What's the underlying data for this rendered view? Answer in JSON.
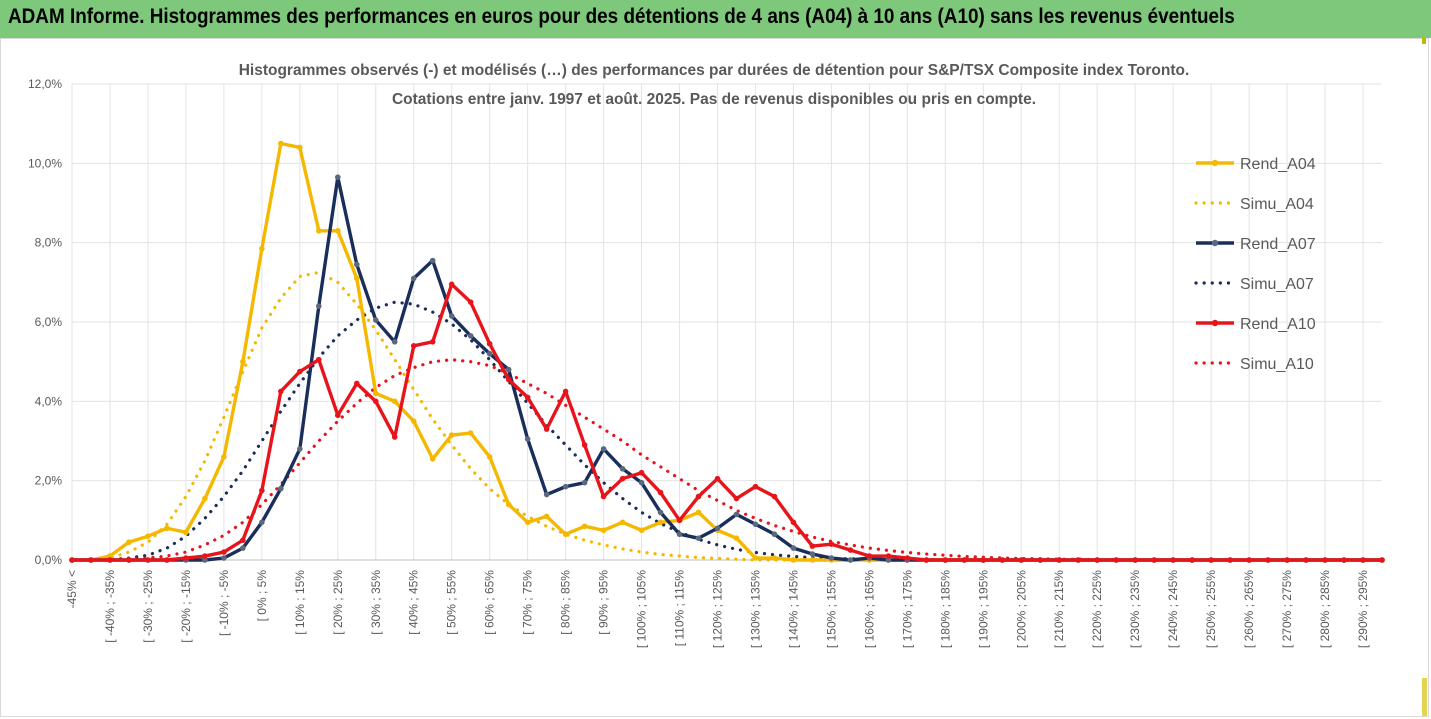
{
  "banner": {
    "title": "ADAM Informe. Histogrammes des performances en euros pour des détentions de 4 ans (A04) à 10 ans (A10) sans les revenus éventuels"
  },
  "chart_data": {
    "type": "line",
    "title_line1": "Histogrammes observés (-) et modélisés (…) des performances par durées de détention pour S&P/TSX Composite index Toronto.",
    "title_line2": "Cotations entre janv. 1997 et août. 2025. Pas de revenus disponibles ou pris en compte.",
    "ylim": [
      0,
      12
    ],
    "y_ticks": [
      "0,0%",
      "2,0%",
      "4,0%",
      "6,0%",
      "8,0%",
      "10,0%",
      "12,0%"
    ],
    "x_labels": [
      "-45% <",
      "[ -40% ; -35%",
      "[ -30% ; -25%",
      "[ -20% ; -15%",
      "[ -10% ; -5%",
      "[ 0% ; 5%",
      "[ 10% ; 15%",
      "[ 20% ; 25%",
      "[ 30% ; 35%",
      "[ 40% ; 45%",
      "[ 50% ; 55%",
      "[ 60% ; 65%",
      "[ 70% ; 75%",
      "[ 80% ; 85%",
      "[ 90% ; 95%",
      "[ 100% ; 105%",
      "[ 110% ; 115%",
      "[ 120% ; 125%",
      "[ 130% ; 135%",
      "[ 140% ; 145%",
      "[ 150% ; 155%",
      "[ 160% ; 165%",
      "[ 170% ; 175%",
      "[ 180% ; 185%",
      "[ 190% ; 195%",
      "[ 200% ; 205%",
      "[ 210% ; 215%",
      "[ 220% ; 225%",
      "[ 230% ; 235%",
      "[ 240% ; 245%",
      "[ 250% ; 255%",
      "[ 260% ; 265%",
      "[ 270% ; 275%",
      "[ 280% ; 285%",
      "[ 290% ; 295%"
    ],
    "grid": true,
    "legend_position": "right",
    "series": [
      {
        "name": "Rend_A04",
        "style": "solid",
        "color": "#f5b800",
        "values": [
          0,
          0,
          0.1,
          0.45,
          0.6,
          0.8,
          0.7,
          1.55,
          2.6,
          5.0,
          7.85,
          10.5,
          10.4,
          8.3,
          8.3,
          7.1,
          4.2,
          4.0,
          3.5,
          2.55,
          3.15,
          3.2,
          2.6,
          1.4,
          0.95,
          1.1,
          0.65,
          0.85,
          0.75,
          0.95,
          0.75,
          0.95,
          1.0,
          1.2,
          0.75,
          0.55,
          0.05,
          0.05,
          0,
          0,
          0,
          0,
          0,
          0,
          0,
          0,
          0,
          0,
          0,
          0,
          0,
          0,
          0,
          0,
          0,
          0,
          0,
          0,
          0,
          0,
          0,
          0,
          0,
          0,
          0,
          0,
          0,
          0,
          0,
          0
        ]
      },
      {
        "name": "Simu_A04",
        "style": "dotted",
        "color": "#f5b800",
        "values": [
          0,
          0,
          0.05,
          0.2,
          0.45,
          0.9,
          1.6,
          2.5,
          3.6,
          4.75,
          5.85,
          6.6,
          7.15,
          7.25,
          7.0,
          6.45,
          5.8,
          5.05,
          4.3,
          3.55,
          2.9,
          2.3,
          1.8,
          1.4,
          1.1,
          0.85,
          0.65,
          0.5,
          0.38,
          0.28,
          0.2,
          0.14,
          0.1,
          0.06,
          0.04,
          0.02,
          0,
          0,
          0,
          0,
          0,
          0,
          0,
          0,
          0,
          0,
          0,
          0,
          0,
          0,
          0,
          0,
          0,
          0,
          0,
          0,
          0,
          0,
          0,
          0,
          0,
          0,
          0,
          0,
          0,
          0,
          0,
          0,
          0,
          0
        ]
      },
      {
        "name": "Rend_A07",
        "style": "solid",
        "color": "#1a2e5c",
        "values": [
          0,
          0,
          0,
          0,
          0,
          0,
          0,
          0,
          0.05,
          0.3,
          0.95,
          1.8,
          2.8,
          6.4,
          9.65,
          7.45,
          6.05,
          5.5,
          7.1,
          7.55,
          6.15,
          5.65,
          5.2,
          4.8,
          3.05,
          1.65,
          1.85,
          1.95,
          2.8,
          2.3,
          1.95,
          1.2,
          0.65,
          0.55,
          0.8,
          1.15,
          0.9,
          0.65,
          0.3,
          0.15,
          0.05,
          0,
          0.05,
          0,
          0,
          0,
          0,
          0,
          0,
          0,
          0,
          0,
          0,
          0,
          0,
          0,
          0,
          0,
          0,
          0,
          0,
          0,
          0,
          0,
          0,
          0,
          0,
          0,
          0,
          0
        ]
      },
      {
        "name": "Simu_A07",
        "style": "dotted",
        "color": "#1a2e5c",
        "values": [
          0,
          0,
          0,
          0.05,
          0.12,
          0.3,
          0.6,
          1.05,
          1.6,
          2.25,
          3.0,
          3.75,
          4.45,
          5.1,
          5.65,
          6.05,
          6.35,
          6.5,
          6.45,
          6.25,
          5.95,
          5.55,
          5.05,
          4.5,
          3.95,
          3.4,
          2.9,
          2.4,
          1.95,
          1.55,
          1.2,
          0.92,
          0.7,
          0.52,
          0.38,
          0.27,
          0.19,
          0.13,
          0.09,
          0.06,
          0.04,
          0.03,
          0.02,
          0,
          0,
          0,
          0,
          0,
          0,
          0,
          0,
          0,
          0,
          0,
          0,
          0,
          0,
          0,
          0,
          0,
          0,
          0,
          0,
          0,
          0,
          0,
          0,
          0,
          0,
          0
        ]
      },
      {
        "name": "Rend_A10",
        "style": "solid",
        "color": "#e8141c",
        "values": [
          0,
          0,
          0,
          0,
          0,
          0,
          0.05,
          0.1,
          0.2,
          0.5,
          1.75,
          4.25,
          4.75,
          5.05,
          3.65,
          4.45,
          4.0,
          3.1,
          5.4,
          5.5,
          6.95,
          6.5,
          5.45,
          4.55,
          4.1,
          3.3,
          4.25,
          2.9,
          1.6,
          2.05,
          2.2,
          1.7,
          1.0,
          1.6,
          2.05,
          1.55,
          1.85,
          1.6,
          0.95,
          0.35,
          0.4,
          0.25,
          0.1,
          0.1,
          0.05,
          0,
          0,
          0,
          0,
          0,
          0,
          0,
          0,
          0,
          0,
          0,
          0,
          0,
          0,
          0,
          0,
          0,
          0,
          0,
          0,
          0,
          0,
          0,
          0,
          0
        ]
      },
      {
        "name": "Simu_A10",
        "style": "dotted",
        "color": "#e8141c",
        "values": [
          0,
          0,
          0,
          0,
          0.05,
          0.1,
          0.2,
          0.38,
          0.62,
          0.95,
          1.4,
          1.9,
          2.45,
          3.0,
          3.5,
          3.95,
          4.35,
          4.65,
          4.85,
          5.0,
          5.05,
          5.0,
          4.9,
          4.7,
          4.45,
          4.2,
          3.9,
          3.6,
          3.3,
          3.0,
          2.65,
          2.35,
          2.05,
          1.75,
          1.5,
          1.25,
          1.05,
          0.87,
          0.72,
          0.58,
          0.47,
          0.38,
          0.3,
          0.24,
          0.19,
          0.15,
          0.12,
          0.09,
          0.07,
          0.05,
          0.04,
          0.03,
          0.02,
          0.02,
          0.01,
          0.01,
          0,
          0,
          0,
          0,
          0,
          0,
          0,
          0,
          0,
          0,
          0,
          0,
          0,
          0
        ]
      }
    ]
  }
}
